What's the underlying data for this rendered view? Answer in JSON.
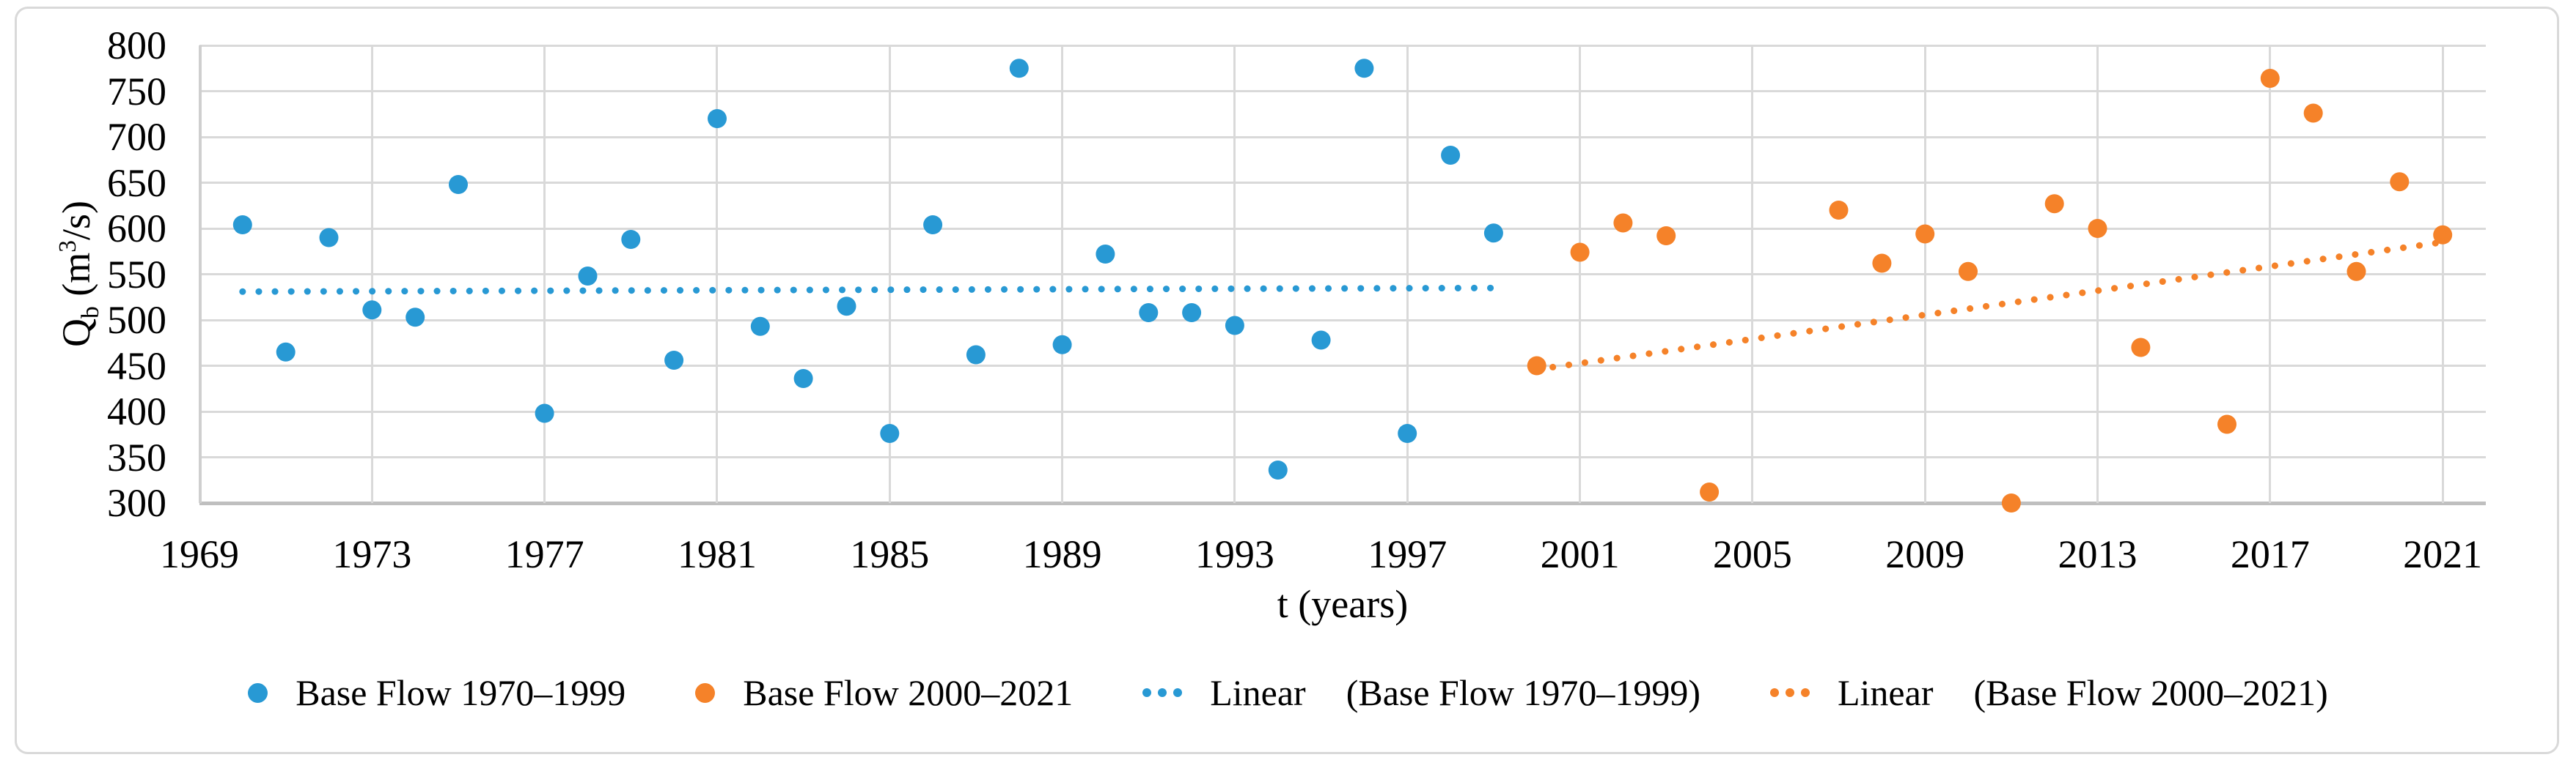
{
  "chart_data": {
    "type": "scatter",
    "title": "",
    "xlabel": "t (years)",
    "ylabel": "Qb (m3/s)",
    "ylabel_parts": {
      "base": "Q",
      "sub": "b",
      "mid": " (m",
      "sup": "3",
      "end": "/s)"
    },
    "xlim": [
      1969,
      2022
    ],
    "ylim": [
      300,
      800
    ],
    "x_ticks": [
      1969,
      1973,
      1977,
      1981,
      1985,
      1989,
      1993,
      1997,
      2001,
      2005,
      2009,
      2013,
      2017,
      2021
    ],
    "y_ticks": [
      300,
      350,
      400,
      450,
      500,
      550,
      600,
      650,
      700,
      750,
      800
    ],
    "grid": true,
    "legend_position": "bottom",
    "series": [
      {
        "name": "Base Flow 1970–1999",
        "color": "#2899D4",
        "marker": "circle",
        "points": [
          [
            1970,
            604
          ],
          [
            1971,
            465
          ],
          [
            1972,
            590
          ],
          [
            1973,
            511
          ],
          [
            1974,
            503
          ],
          [
            1975,
            648
          ],
          [
            1977,
            398
          ],
          [
            1978,
            548
          ],
          [
            1979,
            588
          ],
          [
            1980,
            456
          ],
          [
            1981,
            720
          ],
          [
            1982,
            493
          ],
          [
            1983,
            436
          ],
          [
            1984,
            515
          ],
          [
            1985,
            376
          ],
          [
            1986,
            604
          ],
          [
            1987,
            462
          ],
          [
            1988,
            775
          ],
          [
            1989,
            473
          ],
          [
            1990,
            572
          ],
          [
            1991,
            508
          ],
          [
            1992,
            508
          ],
          [
            1993,
            494
          ],
          [
            1994,
            336
          ],
          [
            1995,
            478
          ],
          [
            1996,
            775
          ],
          [
            1997,
            376
          ],
          [
            1998,
            680
          ],
          [
            1999,
            595
          ]
        ]
      },
      {
        "name": "Base Flow 2000–2021",
        "color": "#F58229",
        "marker": "circle",
        "points": [
          [
            2000,
            450
          ],
          [
            2001,
            574
          ],
          [
            2002,
            606
          ],
          [
            2003,
            592
          ],
          [
            2004,
            312
          ],
          [
            2007,
            620
          ],
          [
            2008,
            562
          ],
          [
            2009,
            594
          ],
          [
            2010,
            553
          ],
          [
            2011,
            300
          ],
          [
            2012,
            627
          ],
          [
            2013,
            600
          ],
          [
            2014,
            470
          ],
          [
            2016,
            386
          ],
          [
            2017,
            764
          ],
          [
            2018,
            726
          ],
          [
            2019,
            553
          ],
          [
            2020,
            651
          ],
          [
            2021,
            593
          ]
        ]
      }
    ],
    "trendlines": [
      {
        "name": "Linear (Base Flow 1970–1999)",
        "color": "#2899D4",
        "style": "dotted",
        "x1": 1970,
        "y1": 531,
        "x2": 1999,
        "y2": 535
      },
      {
        "name": "Linear (Base Flow 2000–2021)",
        "color": "#F58229",
        "style": "dotted",
        "x1": 2000,
        "y1": 446,
        "x2": 2021,
        "y2": 585
      }
    ]
  },
  "legend": {
    "items": [
      {
        "swatch": "dot",
        "label": "Base Flow 1970–1999"
      },
      {
        "swatch": "dot",
        "label": "Base Flow 2000–2021"
      },
      {
        "swatch": "dots",
        "label": "Linear",
        "sublabel": "(Base Flow 1970–1999)"
      },
      {
        "swatch": "dots",
        "label": "Linear",
        "sublabel": "(Base Flow 2000–2021)"
      }
    ]
  },
  "colors": {
    "gridline": "#D9D9D9",
    "axis_line": "#BFBFBF",
    "blue": "#2899D4",
    "orange": "#F58229"
  }
}
